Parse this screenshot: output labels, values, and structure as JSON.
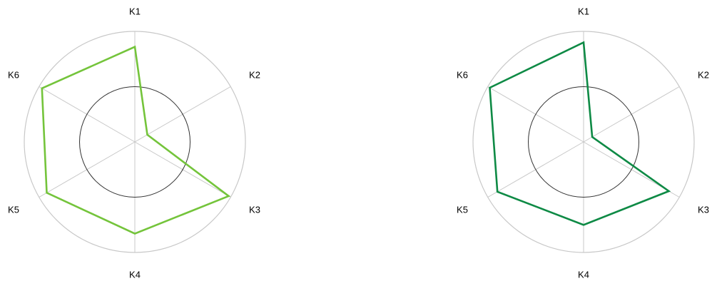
{
  "colors": {
    "outer_ring": "#c8c8c8",
    "inner_ring": "#333333",
    "spoke": "#c8c8c8",
    "left_series": "#74c43b",
    "right_series": "#0e8a45"
  },
  "chart_data": [
    {
      "type": "radar",
      "title": "",
      "axes": [
        "K1",
        "K2",
        "K3",
        "K4",
        "K5",
        "K6"
      ],
      "range": [
        0,
        1
      ],
      "reference_circle": 0.5,
      "series": [
        {
          "values": [
            0.86,
            0.13,
            0.98,
            0.83,
            0.92,
            0.97
          ]
        }
      ]
    },
    {
      "type": "radar",
      "title": "",
      "axes": [
        "K1",
        "K2",
        "K3",
        "K4",
        "K5",
        "K6"
      ],
      "range": [
        0,
        1
      ],
      "reference_circle": 0.5,
      "series": [
        {
          "values": [
            0.9,
            0.09,
            0.89,
            0.75,
            0.9,
            0.98
          ]
        }
      ]
    }
  ]
}
